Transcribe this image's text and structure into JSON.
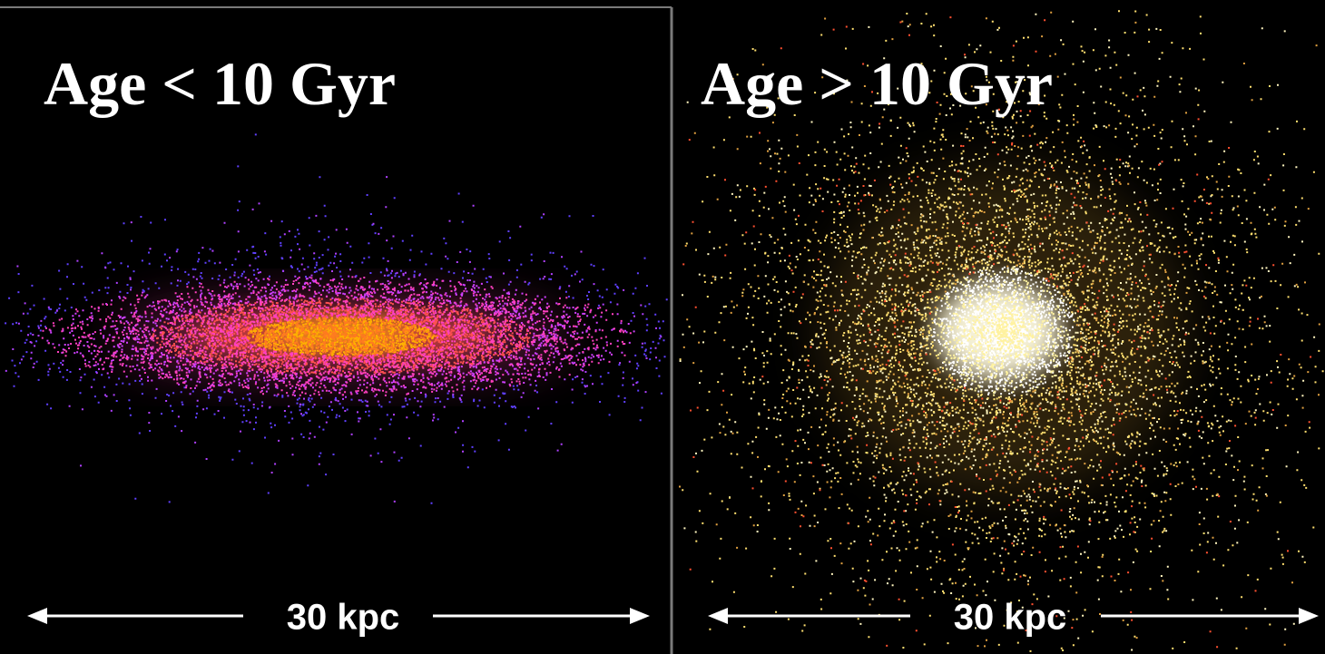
{
  "panels": [
    {
      "title": "Age < 10 Gyr",
      "scale_label": "30 kpc"
    },
    {
      "title": "Age > 10 Gyr",
      "scale_label": "30 kpc"
    }
  ]
}
